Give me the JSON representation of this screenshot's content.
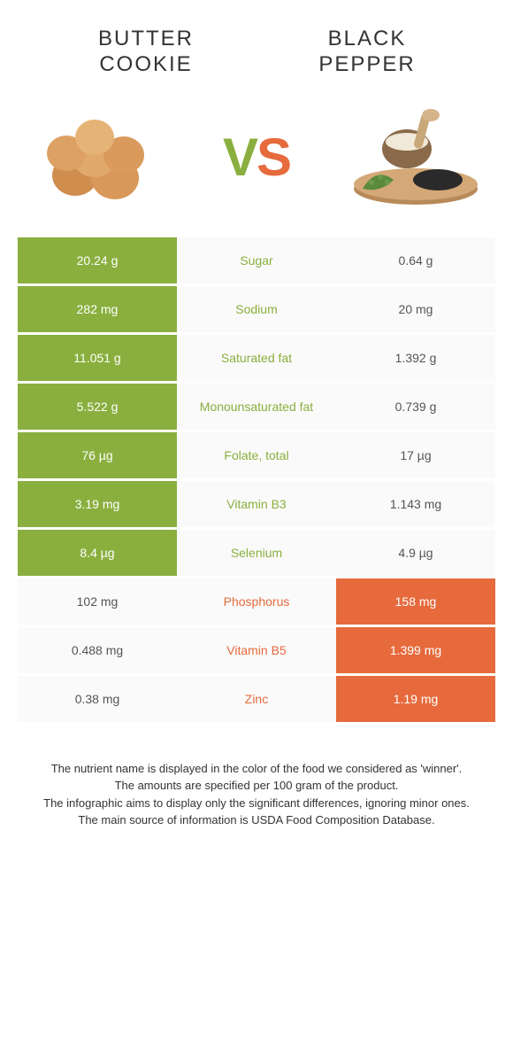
{
  "header": {
    "left_title_line1": "BUTTER",
    "left_title_line2": "COOKIE",
    "right_title_line1": "BLACK",
    "right_title_line2": "PEPPER"
  },
  "vs": {
    "v": "V",
    "s": "S"
  },
  "colors": {
    "green": "#8aaf3e",
    "orange": "#e66a3c",
    "row_bg": "#fafafa",
    "text": "#333333",
    "cell_text": "#555555",
    "white": "#ffffff"
  },
  "typography": {
    "header_fontsize": 24,
    "vs_fontsize": 60,
    "cell_fontsize": 14,
    "footer_fontsize": 13
  },
  "table": {
    "type": "comparison-table",
    "columns": [
      "left_value",
      "nutrient",
      "right_value"
    ],
    "rows": [
      {
        "left": "20.24 g",
        "label": "Sugar",
        "right": "0.64 g",
        "winner": "left"
      },
      {
        "left": "282 mg",
        "label": "Sodium",
        "right": "20 mg",
        "winner": "left"
      },
      {
        "left": "11.051 g",
        "label": "Saturated fat",
        "right": "1.392 g",
        "winner": "left"
      },
      {
        "left": "5.522 g",
        "label": "Monounsaturated fat",
        "right": "0.739 g",
        "winner": "left"
      },
      {
        "left": "76 µg",
        "label": "Folate, total",
        "right": "17 µg",
        "winner": "left"
      },
      {
        "left": "3.19 mg",
        "label": "Vitamin B3",
        "right": "1.143 mg",
        "winner": "left"
      },
      {
        "left": "8.4 µg",
        "label": "Selenium",
        "right": "4.9 µg",
        "winner": "left"
      },
      {
        "left": "102 mg",
        "label": "Phosphorus",
        "right": "158 mg",
        "winner": "right"
      },
      {
        "left": "0.488 mg",
        "label": "Vitamin B5",
        "right": "1.399 mg",
        "winner": "right"
      },
      {
        "left": "0.38 mg",
        "label": "Zinc",
        "right": "1.19 mg",
        "winner": "right"
      }
    ]
  },
  "footer": {
    "line1": "The nutrient name is displayed in the color of the food we considered as 'winner'.",
    "line2": "The amounts are specified per 100 gram of the product.",
    "line3": "The infographic aims to display only the significant differences, ignoring minor ones.",
    "line4": "The main source of information is USDA Food Composition Database."
  },
  "images": {
    "left_alt": "butter cookies",
    "right_alt": "black pepper mortar"
  }
}
